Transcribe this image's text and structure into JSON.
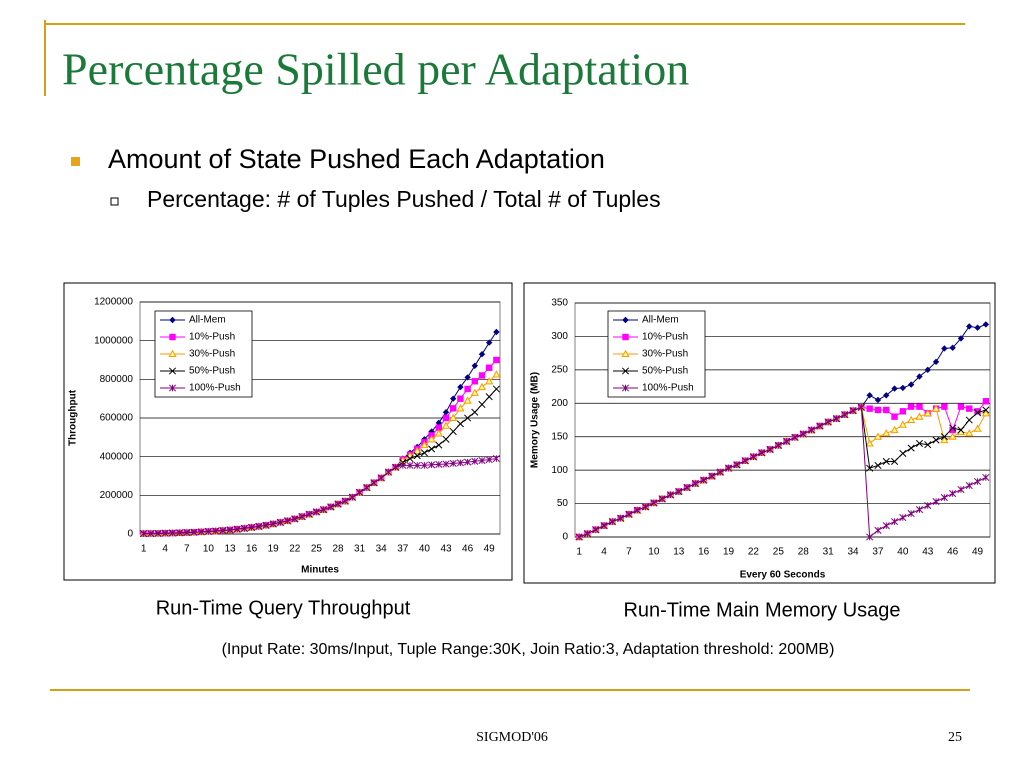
{
  "slide": {
    "title": "Percentage Spilled per Adaptation",
    "bullet": "Amount of State Pushed Each Adaptation",
    "sub_bullet": "Percentage: # of Tuples Pushed / Total # of Tuples",
    "captions": [
      "Run-Time Query Throughput",
      "Run-Time Main Memory Usage"
    ],
    "note": "(Input Rate: 30ms/Input, Tuple Range:30K, Join Ratio:3, Adaptation threshold: 200MB)",
    "footer": "SIGMOD'06",
    "page_number": 25
  },
  "chart_data": [
    {
      "type": "line",
      "ylabel": "Throughput",
      "xlabel": "Minutes",
      "grid": true,
      "legend": "upper left",
      "categories": [
        1,
        null,
        null,
        4,
        null,
        null,
        7,
        null,
        null,
        10,
        null,
        null,
        13,
        null,
        null,
        16,
        null,
        null,
        19,
        null,
        null,
        22,
        null,
        null,
        25,
        null,
        null,
        28,
        null,
        null,
        31,
        null,
        null,
        34,
        null,
        null,
        37,
        null,
        null,
        40,
        null,
        null,
        43,
        null,
        null,
        46,
        null,
        null,
        49,
        null
      ],
      "ylim": [
        0,
        1200000
      ],
      "yticks": [
        0,
        200000,
        400000,
        600000,
        800000,
        1000000,
        1200000
      ],
      "series": [
        {
          "name": "All-Mem",
          "color": "#000080",
          "marker": "diamond",
          "values": [
            2000,
            2500,
            3000,
            4000,
            5000,
            6000,
            7500,
            9000,
            11000,
            13000,
            15000,
            18000,
            21000,
            25000,
            29000,
            34000,
            39000,
            45000,
            52000,
            60000,
            68000,
            78000,
            90000,
            102000,
            114000,
            126000,
            140000,
            155000,
            170000,
            190000,
            215000,
            240000,
            265000,
            290000,
            320000,
            345000,
            390000,
            420000,
            450000,
            490000,
            530000,
            575000,
            630000,
            700000,
            760000,
            810000,
            870000,
            930000,
            990000,
            1045000
          ]
        },
        {
          "name": "10%-Push",
          "color": "#ff00ff",
          "marker": "square",
          "values": [
            2000,
            2500,
            3000,
            4000,
            5000,
            6000,
            7500,
            9000,
            11000,
            13000,
            15000,
            18000,
            21000,
            25000,
            29000,
            34000,
            39000,
            45000,
            52000,
            60000,
            68000,
            78000,
            90000,
            102000,
            114000,
            126000,
            140000,
            155000,
            170000,
            190000,
            215000,
            240000,
            265000,
            290000,
            320000,
            345000,
            385000,
            410000,
            440000,
            475000,
            510000,
            550000,
            600000,
            650000,
            700000,
            750000,
            790000,
            820000,
            860000,
            900000
          ]
        },
        {
          "name": "30%-Push",
          "color": "#ff9900",
          "marker": "triangle",
          "values": [
            2000,
            2500,
            3000,
            4000,
            5000,
            6000,
            7500,
            9000,
            11000,
            13000,
            15000,
            18000,
            21000,
            25000,
            29000,
            34000,
            39000,
            45000,
            52000,
            60000,
            68000,
            78000,
            90000,
            102000,
            114000,
            126000,
            140000,
            155000,
            170000,
            190000,
            215000,
            240000,
            265000,
            290000,
            320000,
            345000,
            380000,
            405000,
            430000,
            460000,
            490000,
            520000,
            560000,
            600000,
            650000,
            690000,
            730000,
            760000,
            790000,
            825000
          ]
        },
        {
          "name": "50%-Push",
          "color": "#000000",
          "marker": "x",
          "values": [
            2000,
            2500,
            3000,
            4000,
            5000,
            6000,
            7500,
            9000,
            11000,
            13000,
            15000,
            18000,
            21000,
            25000,
            29000,
            34000,
            39000,
            45000,
            52000,
            60000,
            68000,
            78000,
            90000,
            102000,
            114000,
            126000,
            140000,
            155000,
            170000,
            190000,
            215000,
            240000,
            265000,
            290000,
            320000,
            345000,
            370000,
            390000,
            405000,
            420000,
            440000,
            460000,
            490000,
            530000,
            570000,
            600000,
            630000,
            670000,
            710000,
            750000
          ]
        },
        {
          "name": "100%-Push",
          "color": "#800080",
          "marker": "star",
          "values": [
            2000,
            2500,
            3000,
            4000,
            5000,
            6000,
            7500,
            9000,
            11000,
            13000,
            15000,
            18000,
            21000,
            25000,
            29000,
            34000,
            39000,
            45000,
            52000,
            60000,
            68000,
            78000,
            90000,
            102000,
            114000,
            126000,
            140000,
            155000,
            170000,
            190000,
            215000,
            240000,
            265000,
            290000,
            320000,
            345000,
            355000,
            355000,
            355000,
            355000,
            358000,
            360000,
            362000,
            365000,
            368000,
            372000,
            376000,
            380000,
            385000,
            390000
          ]
        }
      ]
    },
    {
      "type": "line",
      "ylabel": "Memory Usage (MB)",
      "xlabel": "Every 60 Seconds",
      "grid": true,
      "legend": "upper left",
      "categories": [
        1,
        null,
        null,
        4,
        null,
        null,
        7,
        null,
        null,
        10,
        null,
        null,
        13,
        null,
        null,
        16,
        null,
        null,
        19,
        null,
        null,
        22,
        null,
        null,
        25,
        null,
        null,
        28,
        null,
        null,
        31,
        null,
        null,
        34,
        null,
        null,
        37,
        null,
        null,
        40,
        null,
        null,
        43,
        null,
        null,
        46,
        null,
        null,
        49,
        null
      ],
      "ylim": [
        0,
        350
      ],
      "yticks": [
        0,
        50,
        100,
        150,
        200,
        250,
        300,
        350
      ],
      "series": [
        {
          "name": "All-Mem",
          "color": "#000080",
          "marker": "diamond",
          "values": [
            0,
            5,
            11,
            17,
            23,
            28,
            34,
            40,
            45,
            51,
            57,
            63,
            68,
            74,
            80,
            85,
            91,
            97,
            103,
            108,
            114,
            120,
            126,
            131,
            137,
            143,
            149,
            154,
            160,
            166,
            172,
            177,
            183,
            189,
            194,
            212,
            205,
            212,
            222,
            223,
            228,
            240,
            250,
            262,
            282,
            283,
            297,
            315,
            313,
            318
          ]
        },
        {
          "name": "10%-Push",
          "color": "#ff00ff",
          "marker": "square",
          "values": [
            0,
            5,
            11,
            17,
            23,
            28,
            34,
            40,
            45,
            51,
            57,
            63,
            68,
            74,
            80,
            85,
            91,
            97,
            103,
            108,
            114,
            120,
            126,
            131,
            137,
            143,
            149,
            154,
            160,
            166,
            172,
            177,
            183,
            189,
            194,
            192,
            190,
            190,
            180,
            188,
            195,
            195,
            185,
            192,
            195,
            160,
            195,
            192,
            188,
            203
          ]
        },
        {
          "name": "30%-Push",
          "color": "#ff9900",
          "marker": "triangle",
          "values": [
            0,
            5,
            11,
            17,
            23,
            28,
            34,
            40,
            45,
            51,
            57,
            63,
            68,
            74,
            80,
            85,
            91,
            97,
            103,
            108,
            114,
            120,
            126,
            131,
            137,
            143,
            149,
            154,
            160,
            166,
            172,
            177,
            183,
            189,
            194,
            140,
            150,
            155,
            160,
            168,
            175,
            180,
            185,
            192,
            145,
            150,
            157,
            155,
            162,
            185
          ]
        },
        {
          "name": "50%-Push",
          "color": "#000000",
          "marker": "x",
          "values": [
            0,
            5,
            11,
            17,
            23,
            28,
            34,
            40,
            45,
            51,
            57,
            63,
            68,
            74,
            80,
            85,
            91,
            97,
            103,
            108,
            114,
            120,
            126,
            131,
            137,
            143,
            149,
            154,
            160,
            166,
            172,
            177,
            183,
            189,
            194,
            103,
            107,
            113,
            113,
            125,
            133,
            140,
            138,
            145,
            150,
            163,
            160,
            175,
            186,
            190
          ]
        },
        {
          "name": "100%-Push",
          "color": "#800080",
          "marker": "star",
          "values": [
            0,
            5,
            11,
            17,
            23,
            28,
            34,
            40,
            45,
            51,
            57,
            63,
            68,
            74,
            80,
            85,
            91,
            97,
            103,
            108,
            114,
            120,
            126,
            131,
            137,
            143,
            149,
            154,
            160,
            166,
            172,
            177,
            183,
            189,
            194,
            0,
            10,
            17,
            23,
            29,
            35,
            41,
            47,
            53,
            59,
            65,
            71,
            77,
            83,
            89
          ]
        }
      ]
    }
  ]
}
